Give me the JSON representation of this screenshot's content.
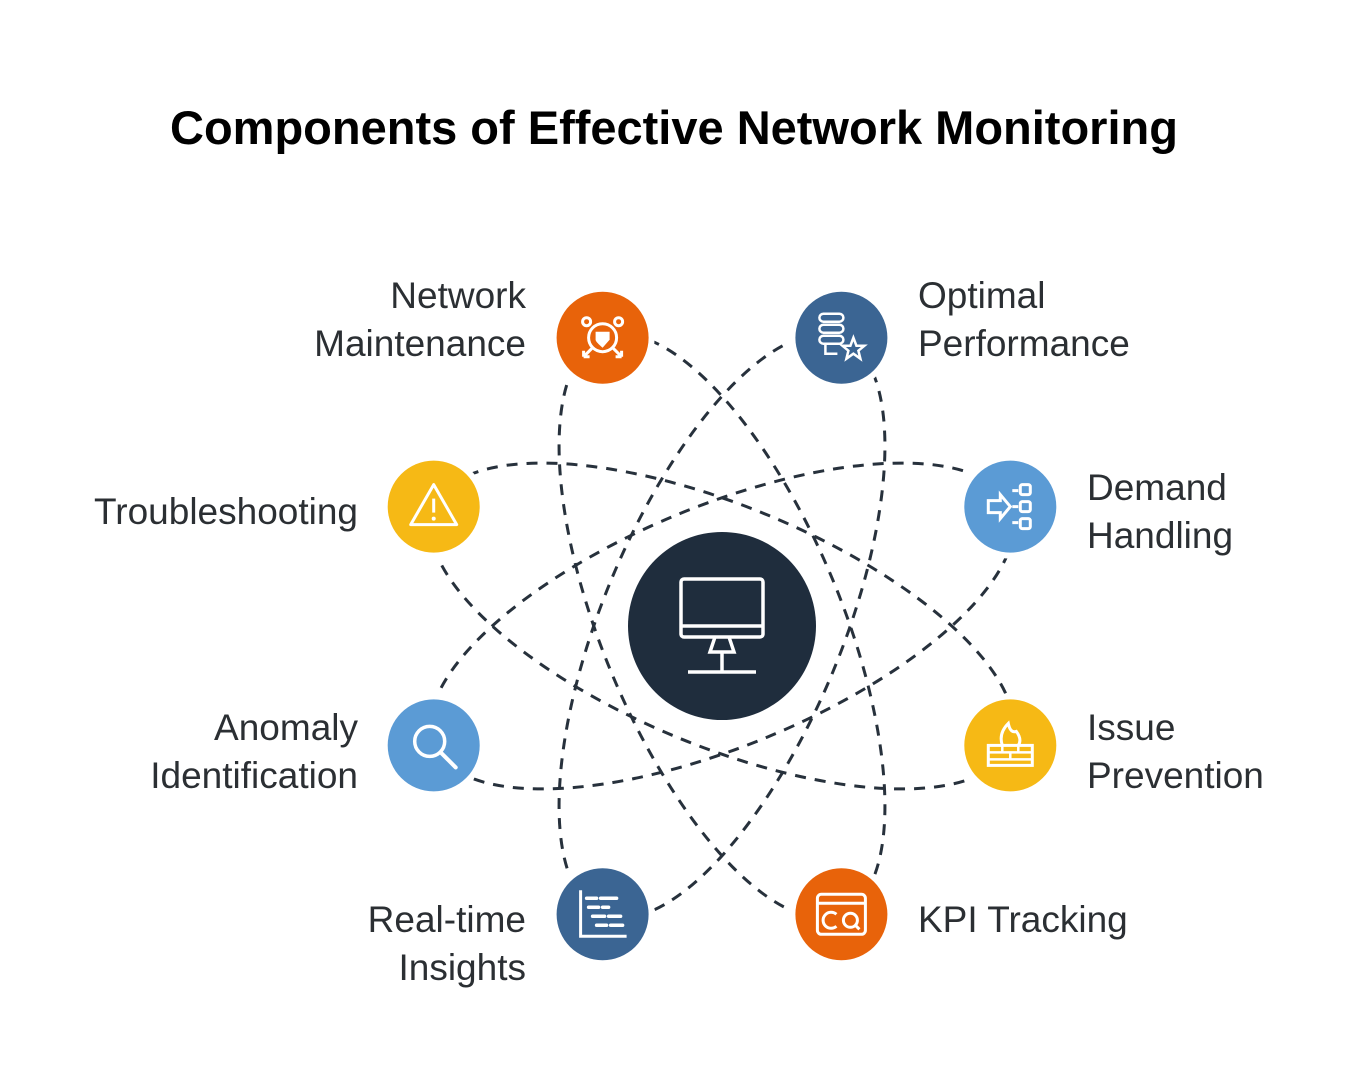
{
  "title": "Components of Effective Network Monitoring",
  "colors": {
    "orange": "#e8630a",
    "dark_blue": "#3b6593",
    "light_blue": "#5b9bd5",
    "yellow": "#f6b915",
    "center": "#1f2d3d",
    "line": "#27313c"
  },
  "center": {
    "icon": "monitor-icon"
  },
  "nodes": [
    {
      "id": "network-maintenance",
      "line1": "Network",
      "line2": "Maintenance",
      "icon": "shield-network-icon",
      "color": "orange"
    },
    {
      "id": "optimal-performance",
      "line1": "Optimal",
      "line2": "Performance",
      "icon": "server-star-icon",
      "color": "dark_blue"
    },
    {
      "id": "troubleshooting",
      "line1": "Troubleshooting",
      "line2": "",
      "icon": "warning-icon",
      "color": "yellow"
    },
    {
      "id": "demand-handling",
      "line1": "Demand",
      "line2": "Handling",
      "icon": "distribution-icon",
      "color": "light_blue"
    },
    {
      "id": "anomaly-identification",
      "line1": "Anomaly",
      "line2": "Identification",
      "icon": "search-icon",
      "color": "light_blue"
    },
    {
      "id": "issue-prevention",
      "line1": "Issue",
      "line2": "Prevention",
      "icon": "firewall-icon",
      "color": "yellow"
    },
    {
      "id": "real-time-insights",
      "line1": "Real-time",
      "line2": "Insights",
      "icon": "gantt-chart-icon",
      "color": "dark_blue"
    },
    {
      "id": "kpi-tracking",
      "line1": "KPI Tracking",
      "line2": "",
      "icon": "dashboard-window-icon",
      "color": "orange"
    }
  ]
}
